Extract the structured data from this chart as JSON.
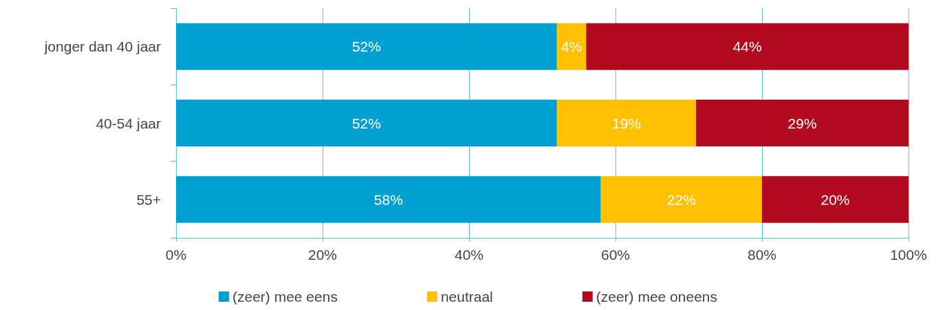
{
  "chart_data": {
    "type": "bar",
    "orientation": "horizontal",
    "stacked": true,
    "categories": [
      "jonger dan 40 jaar",
      "40-54 jaar",
      "55+"
    ],
    "series": [
      {
        "name": "(zeer) mee eens",
        "color": "#00a0d2",
        "values": [
          52,
          52,
          58
        ],
        "value_labels": [
          "52%",
          "52%",
          "58%"
        ]
      },
      {
        "name": "neutraal",
        "color": "#ffc000",
        "values": [
          4,
          19,
          22
        ],
        "value_labels": [
          "4%",
          "19%",
          "22%"
        ]
      },
      {
        "name": "(zeer) mee oneens",
        "color": "#b20a1e",
        "values": [
          44,
          29,
          20
        ],
        "value_labels": [
          "44%",
          "29%",
          "20%"
        ]
      }
    ],
    "xlim": [
      0,
      100
    ],
    "xticks": [
      {
        "value": 0,
        "label": "0%"
      },
      {
        "value": 20,
        "label": "20%"
      },
      {
        "value": 40,
        "label": "40%"
      },
      {
        "value": 60,
        "label": "60%"
      },
      {
        "value": 80,
        "label": "80%"
      },
      {
        "value": 100,
        "label": "100%"
      }
    ],
    "grid": "x",
    "legend": "bottom"
  }
}
